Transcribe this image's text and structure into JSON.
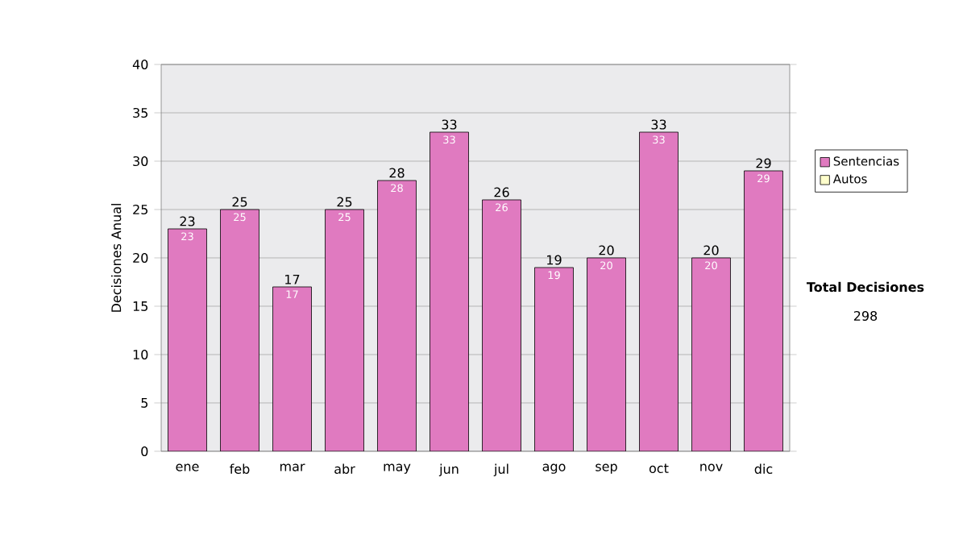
{
  "chart_data": {
    "type": "bar",
    "stacked": true,
    "categories": [
      "ene",
      "feb",
      "mar",
      "abr",
      "may",
      "jun",
      "jul",
      "ago",
      "sep",
      "oct",
      "nov",
      "dic"
    ],
    "series": [
      {
        "name": "Sentencias",
        "color": "#e07ac0",
        "values": [
          23,
          25,
          17,
          25,
          28,
          33,
          26,
          19,
          20,
          33,
          20,
          29
        ],
        "value_labels": [
          "23",
          "25",
          "17",
          "25",
          "28",
          "33",
          "26",
          "19",
          "20",
          "33",
          "20",
          "29"
        ]
      },
      {
        "name": "Autos",
        "color": "#ffffcc",
        "values": [
          0,
          0,
          0,
          0,
          0,
          0,
          0,
          0,
          0,
          0,
          0,
          0
        ],
        "value_labels": [
          null,
          null,
          null,
          null,
          null,
          null,
          null,
          null,
          null,
          null,
          null,
          null
        ]
      }
    ],
    "totals": [
      "23",
      "25",
      "17",
      "25",
      "28",
      "33",
      "26",
      "19",
      "20",
      "33",
      "20",
      "29"
    ],
    "ylabel": "Decisiones Anual",
    "ylim": [
      0,
      40
    ],
    "yticks": [
      0,
      5,
      10,
      15,
      20,
      25,
      30,
      35,
      40
    ],
    "grid": "y",
    "legend": "right",
    "annotations": [
      "**Total Decisiones**",
      "298"
    ]
  }
}
